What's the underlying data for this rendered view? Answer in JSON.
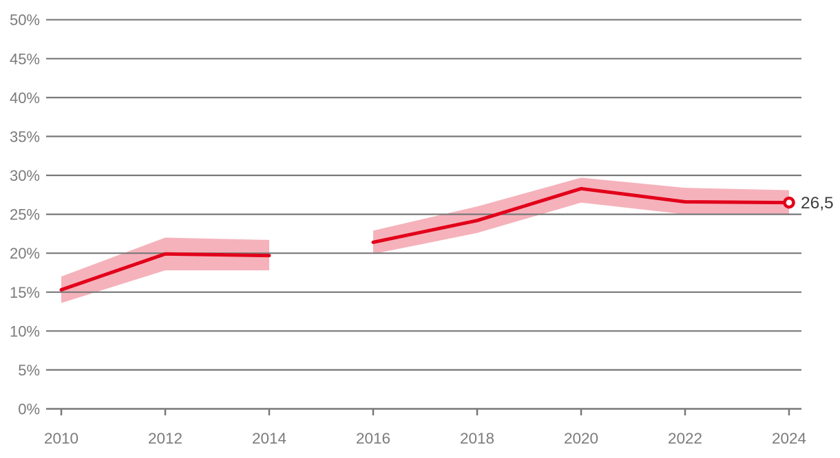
{
  "chart_data": {
    "type": "line",
    "title": "",
    "xlabel": "",
    "ylabel": "",
    "legend": "none",
    "grid": "horizontal",
    "ylim": [
      0,
      50
    ],
    "xlim": [
      2010,
      2024
    ],
    "y_ticks": [
      {
        "value": 0,
        "label": "0%"
      },
      {
        "value": 5,
        "label": "5%"
      },
      {
        "value": 10,
        "label": "10%"
      },
      {
        "value": 15,
        "label": "15%"
      },
      {
        "value": 20,
        "label": "20%"
      },
      {
        "value": 25,
        "label": "25%"
      },
      {
        "value": 30,
        "label": "30%"
      },
      {
        "value": 35,
        "label": "35%"
      },
      {
        "value": 40,
        "label": "40%"
      },
      {
        "value": 45,
        "label": "45%"
      },
      {
        "value": 50,
        "label": "50%"
      }
    ],
    "x_ticks": [
      {
        "value": 2010,
        "label": "2010"
      },
      {
        "value": 2012,
        "label": "2012"
      },
      {
        "value": 2014,
        "label": "2014"
      },
      {
        "value": 2016,
        "label": "2016"
      },
      {
        "value": 2018,
        "label": "2018"
      },
      {
        "value": 2020,
        "label": "2020"
      },
      {
        "value": 2022,
        "label": "2022"
      },
      {
        "value": 2024,
        "label": "2024"
      }
    ],
    "series": [
      {
        "name": "percentage-share-with-confidence-band",
        "line_color": "#e2001a",
        "band_color": "#f5b2bb",
        "segments": [
          {
            "points": [
              {
                "x": 2010,
                "y": 15.3,
                "low": 13.6,
                "high": 17.0
              },
              {
                "x": 2012,
                "y": 19.9,
                "low": 17.8,
                "high": 22.0
              },
              {
                "x": 2014,
                "y": 19.7,
                "low": 17.8,
                "high": 21.7
              }
            ]
          },
          {
            "points": [
              {
                "x": 2016,
                "y": 21.4,
                "low": 19.9,
                "high": 22.9
              },
              {
                "x": 2018,
                "y": 24.2,
                "low": 22.6,
                "high": 26.0
              },
              {
                "x": 2020,
                "y": 28.3,
                "low": 26.5,
                "high": 29.7
              },
              {
                "x": 2022,
                "y": 26.6,
                "low": 25.0,
                "high": 28.4
              },
              {
                "x": 2024,
                "y": 26.5,
                "low": 24.9,
                "high": 28.1
              }
            ]
          }
        ],
        "end_marker": {
          "x": 2024,
          "y": 26.5,
          "label": "26,5"
        }
      }
    ]
  },
  "colors": {
    "line": "#e2001a",
    "band": "#f5b2bb",
    "grid": "#787878",
    "axis": "#787878",
    "tick_label": "#7b7b7b",
    "end_label": "#3d3d3d",
    "background": "#ffffff"
  }
}
